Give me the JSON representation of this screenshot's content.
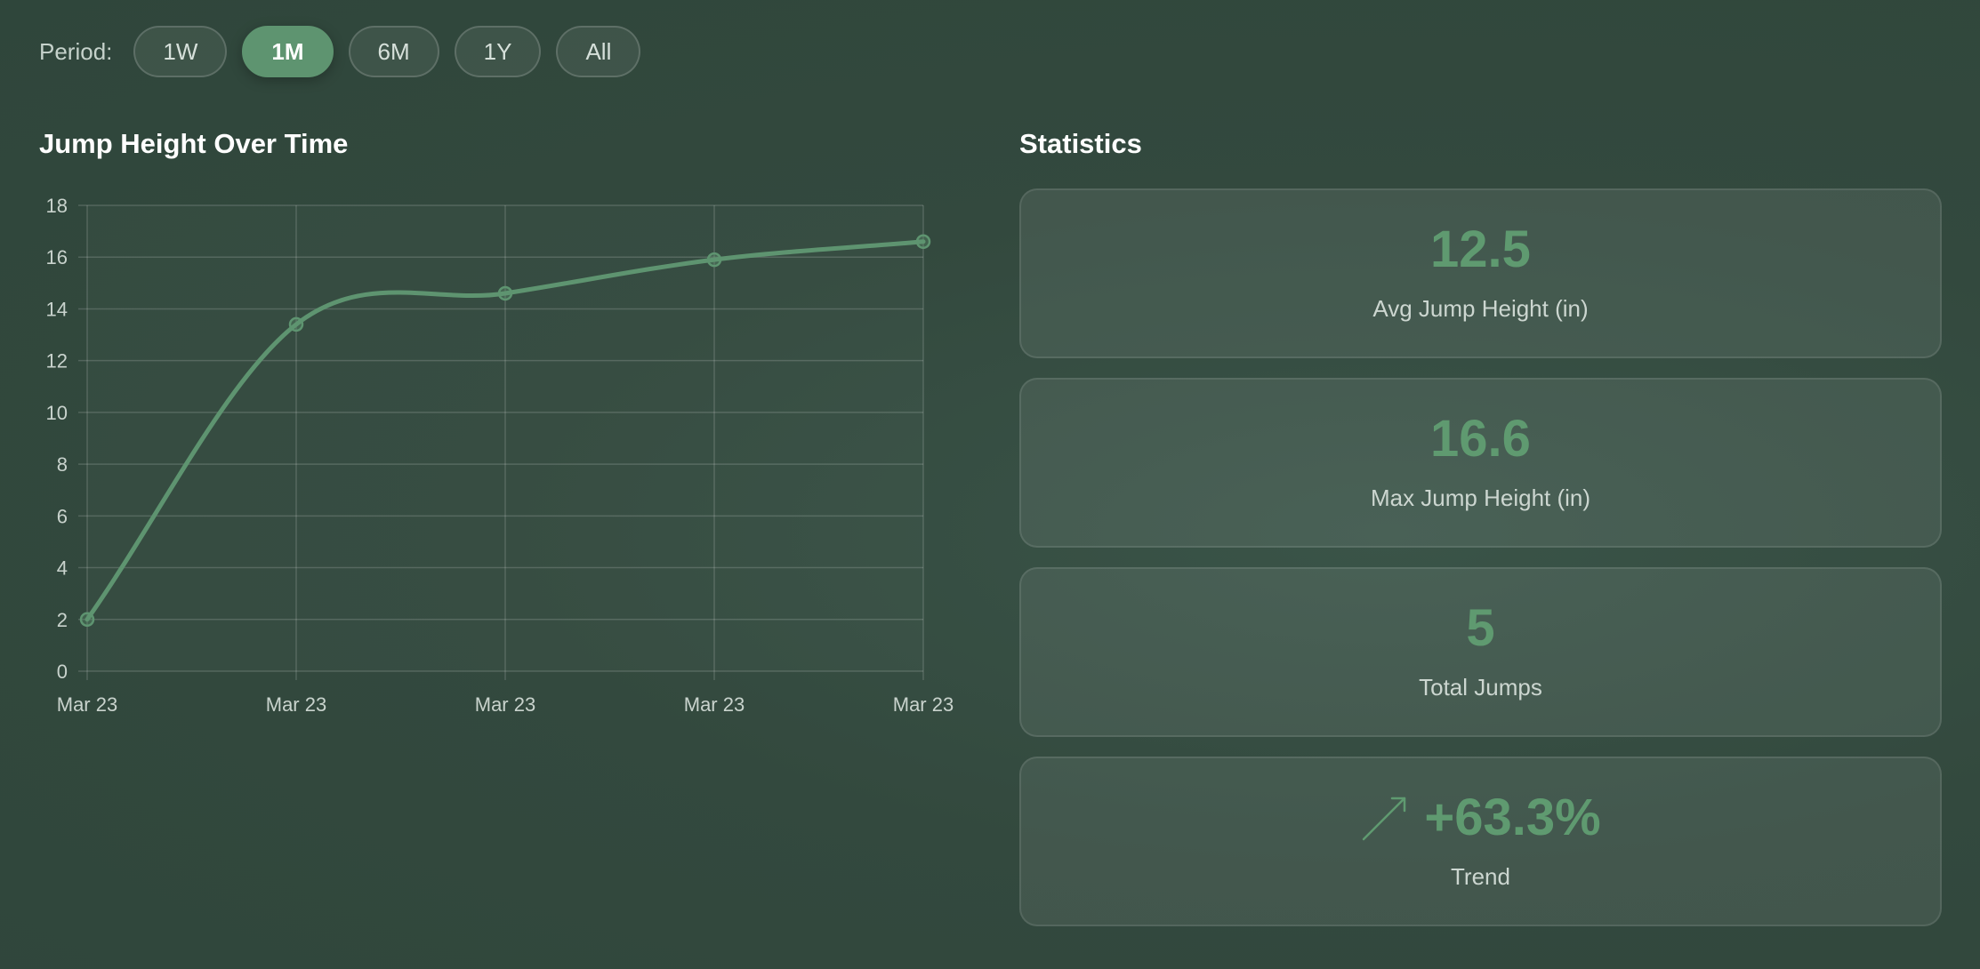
{
  "period": {
    "label": "Period:",
    "options": [
      "1W",
      "1M",
      "6M",
      "1Y",
      "All"
    ],
    "selected": "1M"
  },
  "chart_section": {
    "title": "Jump Height Over Time"
  },
  "chart_data": {
    "type": "line",
    "x": [
      "Mar 23",
      "Mar 23",
      "Mar 23",
      "Mar 23",
      "Mar 23"
    ],
    "values": [
      2.0,
      13.4,
      14.6,
      15.9,
      16.6
    ],
    "ylim": [
      0,
      18
    ],
    "yticks": [
      "0",
      "2",
      "4",
      "6",
      "8",
      "10",
      "12",
      "14",
      "16",
      "18"
    ],
    "grid": true,
    "smooth": true,
    "color": "#5e9470"
  },
  "stats_section": {
    "title": "Statistics",
    "cards": [
      {
        "value": "12.5",
        "label": "Avg Jump Height (in)"
      },
      {
        "value": "16.6",
        "label": "Max Jump Height (in)"
      },
      {
        "value": "5",
        "label": "Total Jumps"
      },
      {
        "value": "+63.3%",
        "label": "Trend",
        "icon": "trend-up-icon"
      }
    ]
  },
  "colors": {
    "accent": "#5e9470",
    "stat_value": "#5f9a70",
    "background": "#33493e"
  }
}
